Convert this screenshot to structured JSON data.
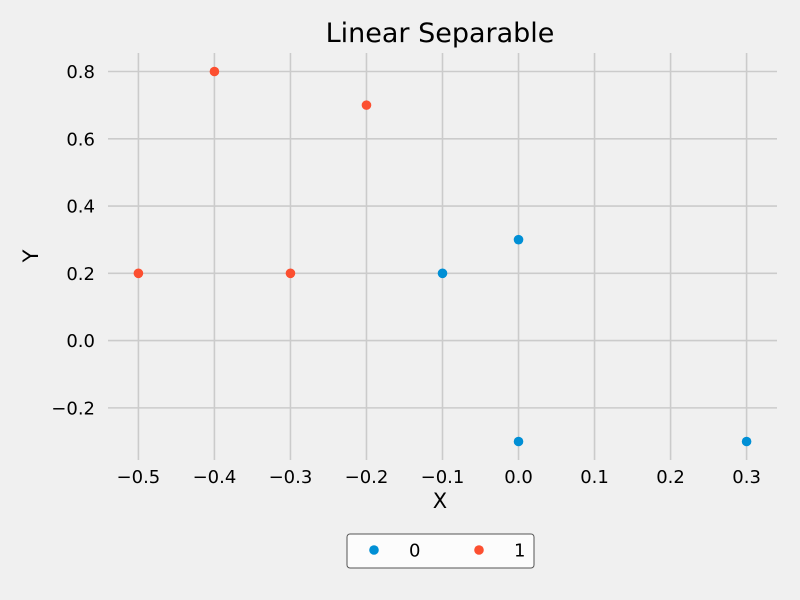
{
  "chart_data": {
    "type": "scatter",
    "title": "Linear Separable",
    "xlabel": "X",
    "ylabel": "Y",
    "xlim": [
      -0.54,
      0.34
    ],
    "ylim": [
      -0.355,
      0.855
    ],
    "x_ticks": [
      -0.5,
      -0.4,
      -0.3,
      -0.2,
      -0.1,
      0.0,
      0.1,
      0.2,
      0.3
    ],
    "x_tick_labels": [
      "−0.5",
      "−0.4",
      "−0.3",
      "−0.2",
      "−0.1",
      "0.0",
      "0.1",
      "0.2",
      "0.3"
    ],
    "y_ticks": [
      -0.2,
      0.0,
      0.2,
      0.4,
      0.6,
      0.8
    ],
    "y_tick_labels": [
      "−0.2",
      "0.0",
      "0.2",
      "0.4",
      "0.6",
      "0.8"
    ],
    "grid": true,
    "legend_position": "bottom-center",
    "series": [
      {
        "name": "0",
        "color": "#008fd5",
        "points": [
          {
            "x": -0.1,
            "y": 0.2
          },
          {
            "x": 0.0,
            "y": 0.3
          },
          {
            "x": 0.0,
            "y": -0.3
          },
          {
            "x": 0.3,
            "y": -0.3
          }
        ]
      },
      {
        "name": "1",
        "color": "#fc4f30",
        "points": [
          {
            "x": -0.4,
            "y": 0.8
          },
          {
            "x": -0.2,
            "y": 0.7
          },
          {
            "x": -0.5,
            "y": 0.2
          },
          {
            "x": -0.3,
            "y": 0.2
          }
        ]
      }
    ]
  }
}
